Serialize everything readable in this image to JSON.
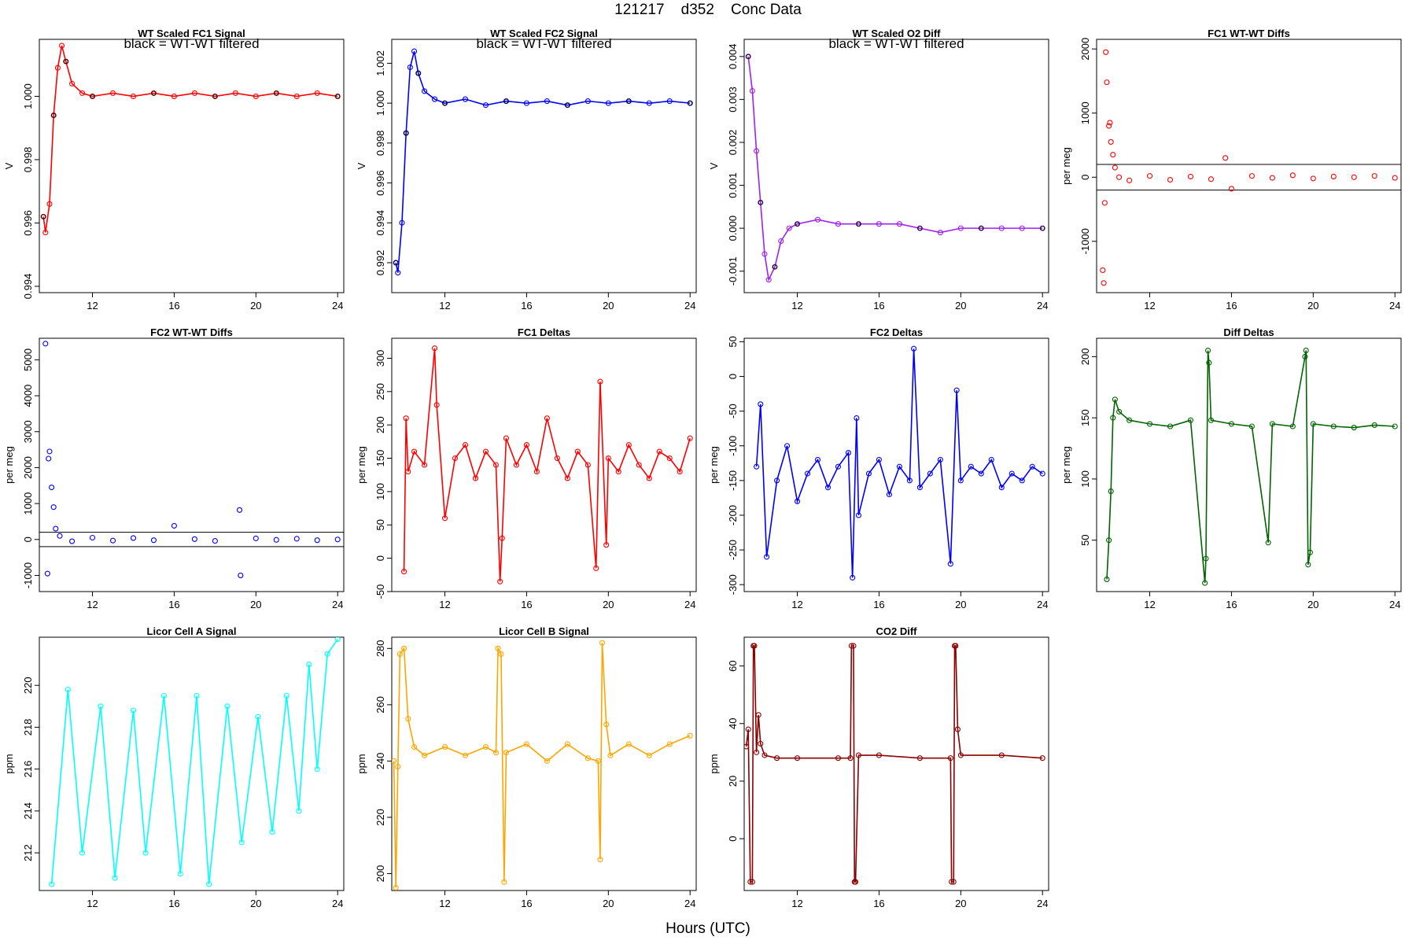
{
  "figure": {
    "title": "121217    d352    Conc Data",
    "xlabel": "Hours (UTC)",
    "xticks": [
      12,
      16,
      20,
      24
    ]
  },
  "chart_data": [
    {
      "id": "p1",
      "type": "line",
      "title": "WT Scaled FC1 Signal",
      "subtitle": "black = WT-WT filtered",
      "ylabel": "V",
      "xlim": [
        9.4,
        24.3
      ],
      "ylim": [
        0.9938,
        1.0018
      ],
      "yticks": [
        0.994,
        0.996,
        0.998,
        1.0
      ],
      "color": "#ff0000",
      "overlay_color": "#000000",
      "series": [
        {
          "name": "signal",
          "x": [
            9.6,
            9.7,
            9.9,
            10.1,
            10.3,
            10.5,
            10.7,
            11.0,
            11.5,
            12.0,
            13.0,
            14.0,
            15.0,
            16.0,
            17.0,
            18.0,
            19.0,
            20.0,
            21.0,
            22.0,
            23.0,
            24.0
          ],
          "y": [
            0.9962,
            0.9957,
            0.9966,
            0.9994,
            1.0009,
            1.0016,
            1.0011,
            1.0004,
            1.0001,
            1.0,
            1.0001,
            1.0,
            1.0001,
            1.0,
            1.0001,
            1.0,
            1.0001,
            1.0,
            1.0001,
            1.0,
            1.0001,
            1.0
          ]
        }
      ]
    },
    {
      "id": "p2",
      "type": "line",
      "title": "WT Scaled FC2 Signal",
      "subtitle": "black = WT-WT filtered",
      "ylabel": "V",
      "xlim": [
        9.4,
        24.3
      ],
      "ylim": [
        0.9905,
        1.0032
      ],
      "yticks": [
        0.992,
        0.994,
        0.996,
        0.998,
        1.0,
        1.002
      ],
      "color": "#0000ff",
      "overlay_color": "#000000",
      "series": [
        {
          "name": "signal",
          "x": [
            9.6,
            9.7,
            9.9,
            10.1,
            10.3,
            10.5,
            10.7,
            11.0,
            11.5,
            12.0,
            13.0,
            14.0,
            15.0,
            16.0,
            17.0,
            18.0,
            19.0,
            20.0,
            21.0,
            22.0,
            23.0,
            24.0
          ],
          "y": [
            0.992,
            0.9915,
            0.994,
            0.9985,
            1.0018,
            1.0026,
            1.0015,
            1.0006,
            1.0002,
            1.0,
            1.0002,
            0.9999,
            1.0001,
            1.0,
            1.0001,
            0.9999,
            1.0001,
            1.0,
            1.0001,
            1.0,
            1.0001,
            1.0
          ]
        }
      ]
    },
    {
      "id": "p3",
      "type": "line",
      "title": "WT Scaled O2 Diff",
      "subtitle": "black = WT-WT filtered",
      "ylabel": "V",
      "xlim": [
        9.4,
        24.3
      ],
      "ylim": [
        -0.0015,
        0.0044
      ],
      "yticks": [
        -0.001,
        0.0,
        0.001,
        0.002,
        0.003,
        0.004
      ],
      "color": "#a020f0",
      "overlay_color": "#000000",
      "series": [
        {
          "name": "signal",
          "x": [
            9.6,
            9.8,
            10.0,
            10.2,
            10.4,
            10.6,
            10.9,
            11.2,
            11.6,
            12.0,
            13.0,
            14.0,
            15.0,
            16.0,
            17.0,
            18.0,
            19.0,
            20.0,
            21.0,
            22.0,
            23.0,
            24.0
          ],
          "y": [
            0.004,
            0.0032,
            0.0018,
            0.0006,
            -0.0006,
            -0.0012,
            -0.0009,
            -0.0003,
            0.0,
            0.0001,
            0.0002,
            0.0001,
            0.0001,
            0.0001,
            0.0001,
            0.0,
            -0.0001,
            0.0,
            0.0,
            0.0,
            0.0,
            0.0
          ]
        }
      ]
    },
    {
      "id": "p4",
      "type": "scatter",
      "title": "FC1 WT-WT Diffs",
      "ylabel": "per meg",
      "xlim": [
        9.4,
        24.3
      ],
      "ylim": [
        -1800,
        2150
      ],
      "yticks": [
        -1000,
        0,
        1000,
        2000
      ],
      "hlines": [
        200,
        -200
      ],
      "color": "#ff0000",
      "series": [
        {
          "name": "diffs",
          "x": [
            9.7,
            9.75,
            9.8,
            9.85,
            9.9,
            10.0,
            10.05,
            10.1,
            10.2,
            10.3,
            10.5,
            11.0,
            12.0,
            13.0,
            14.0,
            15.0,
            15.7,
            16.0,
            17.0,
            18.0,
            19.0,
            20.0,
            21.0,
            22.0,
            23.0,
            24.0
          ],
          "y": [
            -1450,
            -1650,
            -400,
            1950,
            1480,
            800,
            850,
            550,
            350,
            150,
            0,
            -50,
            20,
            -40,
            10,
            -30,
            300,
            -180,
            20,
            -10,
            30,
            -20,
            10,
            0,
            20,
            -10
          ]
        }
      ]
    },
    {
      "id": "p5",
      "type": "scatter",
      "title": "FC2 WT-WT Diffs",
      "ylabel": "per meg",
      "xlim": [
        9.4,
        24.3
      ],
      "ylim": [
        -1450,
        5600
      ],
      "yticks": [
        -1000,
        0,
        1000,
        2000,
        3000,
        4000,
        5000
      ],
      "hlines": [
        200,
        -200
      ],
      "color": "#0000ff",
      "series": [
        {
          "name": "diffs",
          "x": [
            9.7,
            9.8,
            9.85,
            9.9,
            10.0,
            10.1,
            10.2,
            10.4,
            11.0,
            12.0,
            13.0,
            14.0,
            15.0,
            16.0,
            17.0,
            18.0,
            19.2,
            19.25,
            20.0,
            21.0,
            22.0,
            23.0,
            24.0
          ],
          "y": [
            5450,
            -950,
            2250,
            2450,
            1450,
            900,
            300,
            100,
            -50,
            50,
            -30,
            40,
            -20,
            380,
            10,
            -40,
            820,
            -1000,
            30,
            -10,
            20,
            -20,
            0
          ]
        }
      ]
    },
    {
      "id": "p6",
      "type": "line",
      "title": "FC1 Deltas",
      "ylabel": "per meg",
      "xlim": [
        9.4,
        24.3
      ],
      "ylim": [
        -50,
        330
      ],
      "yticks": [
        -50,
        0,
        50,
        100,
        150,
        200,
        250,
        300
      ],
      "color": "#ff0000",
      "series": [
        {
          "name": "deltas",
          "x": [
            10.0,
            10.1,
            10.2,
            10.5,
            11.0,
            11.5,
            11.6,
            12.0,
            12.5,
            13.0,
            13.5,
            14.0,
            14.5,
            14.7,
            14.8,
            15.0,
            15.5,
            16.0,
            16.5,
            17.0,
            17.5,
            18.0,
            18.5,
            19.0,
            19.4,
            19.6,
            19.9,
            20.0,
            20.5,
            21.0,
            21.5,
            22.0,
            22.5,
            23.0,
            23.5,
            24.0
          ],
          "y": [
            -20,
            210,
            130,
            160,
            140,
            315,
            230,
            60,
            150,
            170,
            120,
            160,
            140,
            -35,
            30,
            180,
            140,
            170,
            130,
            210,
            150,
            120,
            160,
            140,
            -15,
            265,
            20,
            150,
            130,
            170,
            140,
            120,
            160,
            150,
            130,
            180
          ]
        }
      ]
    },
    {
      "id": "p7",
      "type": "line",
      "title": "FC2 Deltas",
      "ylabel": "per meg",
      "xlim": [
        9.4,
        24.3
      ],
      "ylim": [
        -310,
        55
      ],
      "yticks": [
        -300,
        -250,
        -200,
        -150,
        -100,
        -50,
        0,
        50
      ],
      "color": "#0000ff",
      "series": [
        {
          "name": "deltas",
          "x": [
            10.0,
            10.2,
            10.5,
            11.0,
            11.5,
            12.0,
            12.5,
            13.0,
            13.5,
            14.0,
            14.5,
            14.7,
            14.9,
            15.0,
            15.5,
            16.0,
            16.5,
            17.0,
            17.5,
            17.7,
            18.0,
            18.5,
            19.0,
            19.5,
            19.8,
            20.0,
            20.5,
            21.0,
            21.5,
            22.0,
            22.5,
            23.0,
            23.5,
            24.0
          ],
          "y": [
            -130,
            -40,
            -260,
            -150,
            -100,
            -180,
            -140,
            -120,
            -160,
            -130,
            -110,
            -290,
            -60,
            -200,
            -140,
            -120,
            -170,
            -130,
            -150,
            40,
            -160,
            -140,
            -120,
            -270,
            -20,
            -150,
            -130,
            -140,
            -120,
            -160,
            -140,
            -150,
            -130,
            -140
          ]
        }
      ]
    },
    {
      "id": "p8",
      "type": "line",
      "title": "Diff Deltas",
      "ylabel": "per meg",
      "xlim": [
        9.4,
        24.3
      ],
      "ylim": [
        8,
        215
      ],
      "yticks": [
        50,
        100,
        150,
        200
      ],
      "color": "#006400",
      "series": [
        {
          "name": "deltas",
          "x": [
            9.9,
            10.0,
            10.1,
            10.2,
            10.3,
            10.5,
            11.0,
            12.0,
            13.0,
            14.0,
            14.7,
            14.75,
            14.85,
            14.9,
            15.0,
            16.0,
            17.0,
            17.8,
            18.0,
            19.0,
            19.6,
            19.65,
            19.75,
            19.85,
            20.0,
            21.0,
            22.0,
            23.0,
            24.0
          ],
          "y": [
            18,
            50,
            90,
            150,
            165,
            155,
            148,
            145,
            143,
            148,
            15,
            35,
            205,
            195,
            148,
            145,
            143,
            48,
            145,
            143,
            200,
            205,
            30,
            40,
            145,
            143,
            142,
            144,
            143
          ]
        }
      ]
    },
    {
      "id": "p9",
      "type": "line",
      "title": "Licor Cell A Signal",
      "ylabel": "ppm",
      "xlim": [
        9.4,
        24.3
      ],
      "ylim": [
        210.2,
        222.3
      ],
      "yticks": [
        212,
        214,
        216,
        218,
        220
      ],
      "color": "#00ffff",
      "series": [
        {
          "name": "signal",
          "x": [
            10.0,
            10.8,
            11.5,
            12.4,
            13.1,
            14.0,
            14.6,
            15.5,
            16.3,
            17.1,
            17.7,
            18.6,
            19.3,
            20.1,
            20.8,
            21.5,
            22.1,
            22.6,
            23.0,
            23.5,
            24.0
          ],
          "y": [
            210.5,
            219.8,
            212.0,
            219.0,
            210.8,
            218.8,
            212.0,
            219.5,
            211.0,
            219.5,
            210.5,
            219.0,
            212.5,
            218.5,
            213.0,
            219.5,
            214.0,
            221.0,
            216.0,
            221.5,
            222.2
          ]
        }
      ]
    },
    {
      "id": "p10",
      "type": "line",
      "title": "Licor Cell B Signal",
      "ylabel": "ppm",
      "xlim": [
        9.4,
        24.3
      ],
      "ylim": [
        194,
        284
      ],
      "yticks": [
        200,
        220,
        240,
        260,
        280
      ],
      "color": "#ffa500",
      "series": [
        {
          "name": "signal",
          "x": [
            9.5,
            9.6,
            9.7,
            9.8,
            10.0,
            10.2,
            10.5,
            11.0,
            12.0,
            13.0,
            14.0,
            14.5,
            14.6,
            14.75,
            14.9,
            15.0,
            16.0,
            17.0,
            18.0,
            19.0,
            19.5,
            19.6,
            19.7,
            19.9,
            20.1,
            21.0,
            22.0,
            23.0,
            24.0
          ],
          "y": [
            240,
            195,
            238,
            278,
            280,
            255,
            245,
            242,
            245,
            242,
            245,
            243,
            280,
            278,
            197,
            243,
            246,
            240,
            246,
            241,
            240,
            205,
            282,
            253,
            242,
            246,
            242,
            246,
            249
          ]
        }
      ]
    },
    {
      "id": "p11",
      "type": "line",
      "title": "CO2 Diff",
      "ylabel": "ppm",
      "xlim": [
        9.4,
        24.3
      ],
      "ylim": [
        -18,
        70
      ],
      "yticks": [
        0,
        20,
        40,
        60
      ],
      "color": "#8b0000",
      "series": [
        {
          "name": "diff",
          "x": [
            9.5,
            9.6,
            9.7,
            9.8,
            9.85,
            9.9,
            10.0,
            10.1,
            10.2,
            10.4,
            11.0,
            12.0,
            14.0,
            14.6,
            14.65,
            14.75,
            14.8,
            14.85,
            15.0,
            16.0,
            18.0,
            19.5,
            19.55,
            19.65,
            19.7,
            19.75,
            19.85,
            20.0,
            22.0,
            24.0
          ],
          "y": [
            32,
            38,
            -15,
            -15,
            67,
            67,
            30,
            43,
            33,
            29,
            28,
            28,
            28,
            28,
            67,
            67,
            -15,
            -15,
            29,
            29,
            28,
            28,
            -15,
            -15,
            67,
            67,
            38,
            29,
            29,
            28
          ]
        }
      ]
    }
  ]
}
